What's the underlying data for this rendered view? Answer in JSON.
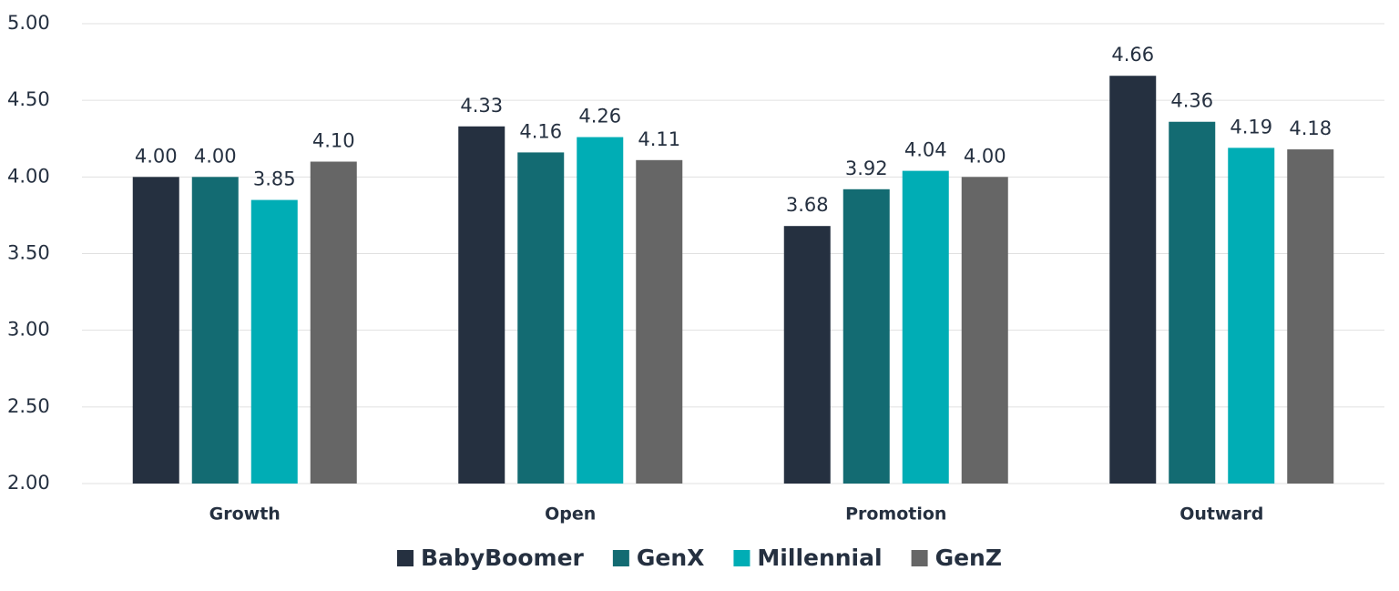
{
  "chart_data": {
    "type": "bar",
    "categories": [
      "Growth",
      "Open",
      "Promotion",
      "Outward"
    ],
    "series": [
      {
        "name": "BabyBoomer",
        "color": "#253040",
        "values": [
          4.0,
          4.33,
          3.68,
          4.66
        ],
        "value_labels": [
          "4.00",
          "4.33",
          "3.68",
          "4.66"
        ]
      },
      {
        "name": "GenX",
        "color": "#136b72",
        "values": [
          4.0,
          4.16,
          3.92,
          4.36
        ],
        "value_labels": [
          "4.00",
          "4.16",
          "3.92",
          "4.36"
        ]
      },
      {
        "name": "Millennial",
        "color": "#00adb5",
        "values": [
          3.85,
          4.26,
          4.04,
          4.19
        ],
        "value_labels": [
          "3.85",
          "4.26",
          "4.04",
          "4.19"
        ]
      },
      {
        "name": "GenZ",
        "color": "#666666",
        "values": [
          4.1,
          4.11,
          4.0,
          4.18
        ],
        "value_labels": [
          "4.10",
          "4.11",
          "4.00",
          "4.18"
        ]
      }
    ],
    "ylim": [
      2,
      5
    ],
    "yticks": [
      {
        "value": 2,
        "label": "2.00"
      },
      {
        "value": 2.5,
        "label": "2.50"
      },
      {
        "value": 3,
        "label": "3.00"
      },
      {
        "value": 3.5,
        "label": "3.50"
      },
      {
        "value": 4,
        "label": "4.00"
      },
      {
        "value": 4.5,
        "label": "4.50"
      },
      {
        "value": 5,
        "label": "5.00"
      }
    ],
    "grid": true,
    "legend": "bottom"
  }
}
